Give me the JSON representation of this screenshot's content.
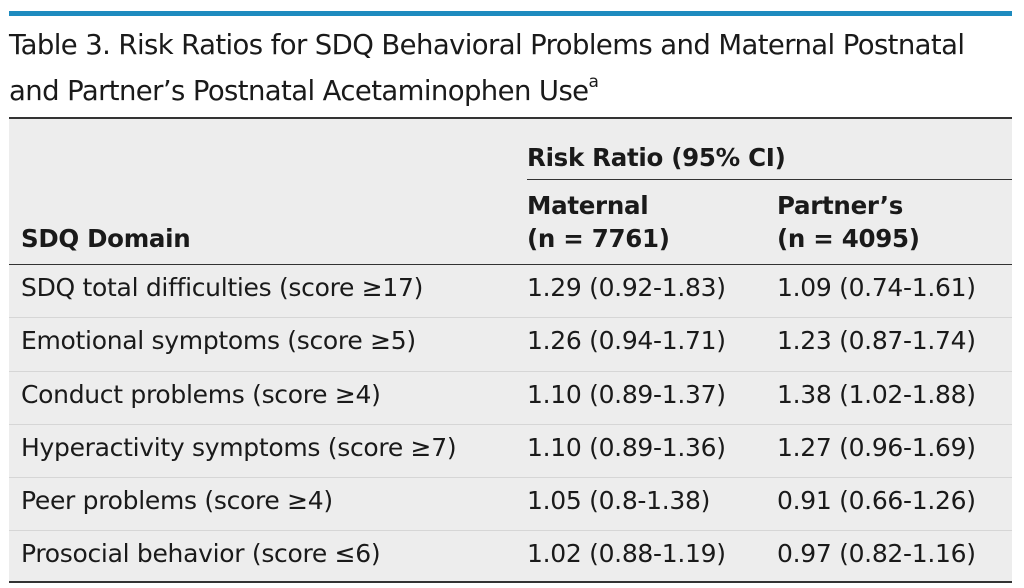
{
  "table": {
    "title": "Table 3. Risk Ratios for SDQ Behavioral Problems and Maternal Postnatal and Partner’s Postnatal Acetaminophen Use",
    "title_footnote": "a",
    "column_group_header": "Risk Ratio (95% CI)",
    "columns": {
      "domain": "SDQ Domain",
      "maternal_line1": "Maternal",
      "maternal_line2": "(n = 7761)",
      "partner_line1": "Partner’s",
      "partner_line2": "(n = 4095)"
    },
    "rows": [
      {
        "domain": "SDQ total difficulties (score ≥17)",
        "maternal": "1.29 (0.92-1.83)",
        "partner": "1.09 (0.74-1.61)"
      },
      {
        "domain": "Emotional symptoms (score ≥5)",
        "maternal": "1.26 (0.94-1.71)",
        "partner": "1.23 (0.87-1.74)"
      },
      {
        "domain": "Conduct problems (score ≥4)",
        "maternal": "1.10 (0.89-1.37)",
        "partner": "1.38 (1.02-1.88)"
      },
      {
        "domain": "Hyperactivity symptoms (score ≥7)",
        "maternal": "1.10 (0.89-1.36)",
        "partner": "1.27 (0.96-1.69)"
      },
      {
        "domain": "Peer problems (score ≥4)",
        "maternal": "1.05 (0.8-1.38)",
        "partner": "0.91 (0.66-1.26)"
      },
      {
        "domain": "Prosocial behavior (score ≤6)",
        "maternal": "1.02 (0.88-1.19)",
        "partner": "0.97 (0.82-1.16)"
      }
    ]
  },
  "colors": {
    "accent_rule": "#1e8bbf",
    "table_background": "#ededed",
    "text": "#1a1a1a"
  }
}
